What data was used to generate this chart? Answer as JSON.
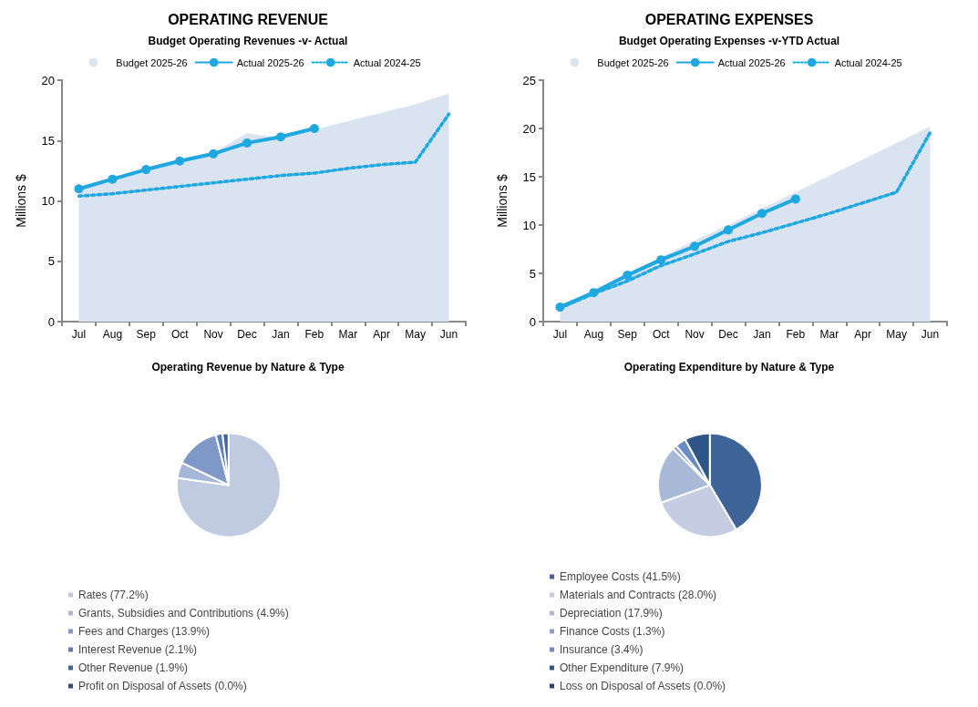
{
  "chart_data": [
    {
      "type": "line",
      "title": "OPERATING REVENUE",
      "subtitle": "Budget Operating Revenues -v- Actual",
      "ylabel": "Millions $",
      "categories": [
        "Jul",
        "Aug",
        "Sep",
        "Oct",
        "Nov",
        "Dec",
        "Jan",
        "Feb",
        "Mar",
        "Apr",
        "May",
        "Jun"
      ],
      "ylim": [
        0,
        20
      ],
      "yticks": [
        0,
        5,
        10,
        15,
        20
      ],
      "grid": false,
      "legend": "top",
      "series": [
        {
          "name": "Budget 2025-26",
          "type": "area",
          "color": "#dae3f0",
          "marker": "none",
          "values": [
            11.0,
            11.8,
            12.6,
            13.3,
            14.0,
            15.6,
            15.2,
            15.9,
            16.6,
            17.3,
            18.0,
            18.9
          ]
        },
        {
          "name": "Actual 2025-26",
          "type": "line",
          "color": "#1fa8e0",
          "marker": "circle",
          "line_style": "solid",
          "values": [
            11.0,
            11.8,
            12.6,
            13.3,
            13.9,
            14.8,
            15.3,
            16.0,
            null,
            null,
            null,
            null
          ]
        },
        {
          "name": "Actual 2024-25",
          "type": "line",
          "color": "#1fa8e0",
          "marker": "none",
          "line_style": "dotted",
          "values": [
            10.4,
            10.6,
            10.9,
            11.2,
            11.5,
            11.8,
            12.1,
            12.3,
            12.7,
            13.0,
            13.2,
            17.2
          ]
        }
      ]
    },
    {
      "type": "line",
      "title": "OPERATING EXPENSES",
      "subtitle": "Budget Operating Expenses -v-YTD Actual",
      "ylabel": "Millions $",
      "categories": [
        "Jul",
        "Aug",
        "Sep",
        "Oct",
        "Nov",
        "Dec",
        "Jan",
        "Feb",
        "Mar",
        "Apr",
        "May",
        "Jun"
      ],
      "ylim": [
        0,
        25
      ],
      "yticks": [
        0,
        5,
        10,
        15,
        20,
        25
      ],
      "grid": false,
      "legend": "top",
      "series": [
        {
          "name": "Budget 2025-26",
          "type": "area",
          "color": "#dae3f0",
          "marker": "none",
          "values": [
            1.6,
            3.3,
            5.0,
            6.7,
            8.4,
            10.0,
            11.7,
            13.4,
            15.1,
            16.8,
            18.5,
            20.2
          ]
        },
        {
          "name": "Actual 2025-26",
          "type": "line",
          "color": "#1fa8e0",
          "marker": "circle",
          "line_style": "solid",
          "values": [
            1.5,
            3.0,
            4.8,
            6.4,
            7.8,
            9.5,
            11.2,
            12.7,
            null,
            null,
            null,
            null
          ]
        },
        {
          "name": "Actual 2024-25",
          "type": "line",
          "color": "#1fa8e0",
          "marker": "none",
          "line_style": "dotted",
          "values": [
            1.4,
            2.9,
            4.2,
            5.8,
            7.0,
            8.3,
            9.2,
            10.2,
            11.2,
            12.3,
            13.4,
            19.6
          ]
        }
      ]
    },
    {
      "type": "pie",
      "title": "Operating Revenue by Nature & Type",
      "legend": "bottom",
      "categories": [
        "Rates (77.2%)",
        "Grants, Subsidies and Contributions (4.9%)",
        "Fees and Charges (13.9%)",
        "Interest Revenue (2.1%)",
        "Other Revenue (1.9%)",
        "Profit on Disposal of Assets (0.0%)"
      ],
      "values": [
        77.2,
        4.9,
        13.9,
        2.1,
        1.9,
        0.0
      ],
      "colors": [
        "#c0cae0",
        "#a6b6d6",
        "#7e98c8",
        "#5d7fb8",
        "#3f669e",
        "#2c5080"
      ]
    },
    {
      "type": "pie",
      "title": "Operating Expenditure by Nature & Type",
      "legend": "bottom",
      "categories": [
        "Employee Costs (41.5%)",
        "Materials and Contracts (28.0%)",
        "Depreciation (17.9%)",
        "Finance Costs (1.3%)",
        "Insurance (3.4%)",
        "Other Expenditure (7.9%)",
        "Loss on Disposal of Assets (0.0%)"
      ],
      "values": [
        41.5,
        28.0,
        17.9,
        1.3,
        3.4,
        7.9,
        0.0
      ],
      "colors": [
        "#3d6399",
        "#c4cde2",
        "#a9b9d8",
        "#8aa0cc",
        "#6a8cc4",
        "#2f5588",
        "#244877"
      ]
    }
  ]
}
